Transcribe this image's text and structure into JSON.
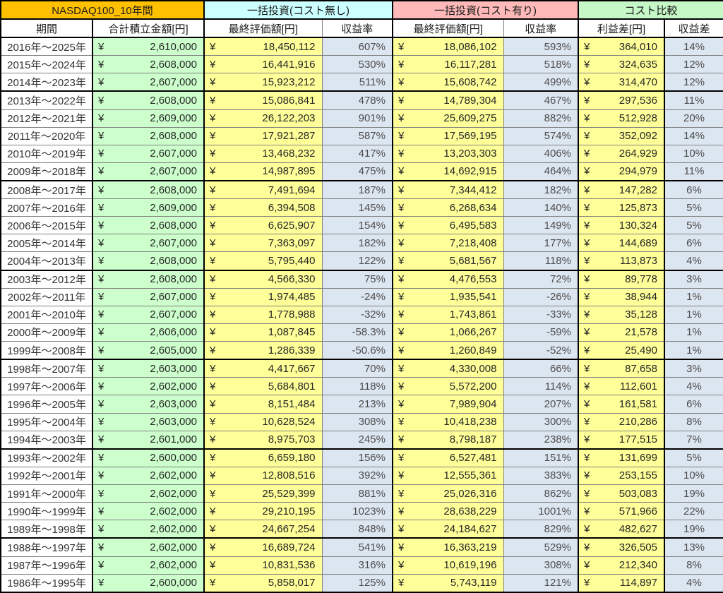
{
  "chart_data": {
    "type": "table",
    "title": "NASDAQ100_10年間",
    "currency_symbol": "¥",
    "group_headers": [
      {
        "label": "NASDAQ100_10年間",
        "color": "#FFC000",
        "span": 2
      },
      {
        "label": "一括投資(コスト無し)",
        "color": "#CCFFFF",
        "span": 2
      },
      {
        "label": "一括投資(コスト有り)",
        "color": "#FFB9B9",
        "span": 2
      },
      {
        "label": "コスト比較",
        "color": "#C6F7C6",
        "span": 2
      }
    ],
    "columns": [
      "期間",
      "合計積立金額[円]",
      "最終評価額[円]",
      "収益率",
      "最終評価額[円]",
      "収益率",
      "利益差[円]",
      "収益差"
    ],
    "cell_colors": {
      "period_bg": "#FFFFFF",
      "invested_bg": "#CCFFCC",
      "value_bg": "#FFFF99",
      "return_bg": "#DCE6F1",
      "grid_thin": "#808080",
      "grid_thick": "#000000"
    },
    "rows": [
      [
        "2016年～2025年",
        "2,610,000",
        "18,450,112",
        "607%",
        "18,086,102",
        "593%",
        "364,010",
        "14%"
      ],
      [
        "2015年～2024年",
        "2,608,000",
        "16,441,916",
        "530%",
        "16,117,281",
        "518%",
        "324,635",
        "12%"
      ],
      [
        "2014年～2023年",
        "2,607,000",
        "15,923,212",
        "511%",
        "15,608,742",
        "499%",
        "314,470",
        "12%"
      ],
      [
        "2013年～2022年",
        "2,608,000",
        "15,086,841",
        "478%",
        "14,789,304",
        "467%",
        "297,536",
        "11%"
      ],
      [
        "2012年～2021年",
        "2,609,000",
        "26,122,203",
        "901%",
        "25,609,275",
        "882%",
        "512,928",
        "20%"
      ],
      [
        "2011年～2020年",
        "2,608,000",
        "17,921,287",
        "587%",
        "17,569,195",
        "574%",
        "352,092",
        "14%"
      ],
      [
        "2010年～2019年",
        "2,607,000",
        "13,468,232",
        "417%",
        "13,203,303",
        "406%",
        "264,929",
        "10%"
      ],
      [
        "2009年～2018年",
        "2,607,000",
        "14,987,895",
        "475%",
        "14,692,915",
        "464%",
        "294,979",
        "11%"
      ],
      [
        "2008年～2017年",
        "2,608,000",
        "7,491,694",
        "187%",
        "7,344,412",
        "182%",
        "147,282",
        "6%"
      ],
      [
        "2007年～2016年",
        "2,609,000",
        "6,394,508",
        "145%",
        "6,268,634",
        "140%",
        "125,873",
        "5%"
      ],
      [
        "2006年～2015年",
        "2,608,000",
        "6,625,907",
        "154%",
        "6,495,583",
        "149%",
        "130,324",
        "5%"
      ],
      [
        "2005年～2014年",
        "2,607,000",
        "7,363,097",
        "182%",
        "7,218,408",
        "177%",
        "144,689",
        "6%"
      ],
      [
        "2004年～2013年",
        "2,608,000",
        "5,795,440",
        "122%",
        "5,681,567",
        "118%",
        "113,873",
        "4%"
      ],
      [
        "2003年～2012年",
        "2,608,000",
        "4,566,330",
        "75%",
        "4,476,553",
        "72%",
        "89,778",
        "3%"
      ],
      [
        "2002年～2011年",
        "2,607,000",
        "1,974,485",
        "-24%",
        "1,935,541",
        "-26%",
        "38,944",
        "1%"
      ],
      [
        "2001年～2010年",
        "2,607,000",
        "1,778,988",
        "-32%",
        "1,743,861",
        "-33%",
        "35,128",
        "1%"
      ],
      [
        "2000年～2009年",
        "2,606,000",
        "1,087,845",
        "-58.3%",
        "1,066,267",
        "-59%",
        "21,578",
        "1%"
      ],
      [
        "1999年～2008年",
        "2,605,000",
        "1,286,339",
        "-50.6%",
        "1,260,849",
        "-52%",
        "25,490",
        "1%"
      ],
      [
        "1998年～2007年",
        "2,603,000",
        "4,417,667",
        "70%",
        "4,330,008",
        "66%",
        "87,658",
        "3%"
      ],
      [
        "1997年～2006年",
        "2,602,000",
        "5,684,801",
        "118%",
        "5,572,200",
        "114%",
        "112,601",
        "4%"
      ],
      [
        "1996年～2005年",
        "2,603,000",
        "8,151,484",
        "213%",
        "7,989,904",
        "207%",
        "161,581",
        "6%"
      ],
      [
        "1995年～2004年",
        "2,603,000",
        "10,628,524",
        "308%",
        "10,418,238",
        "300%",
        "210,286",
        "8%"
      ],
      [
        "1994年～2003年",
        "2,601,000",
        "8,975,703",
        "245%",
        "8,798,187",
        "238%",
        "177,515",
        "7%"
      ],
      [
        "1993年～2002年",
        "2,600,000",
        "6,659,180",
        "156%",
        "6,527,481",
        "151%",
        "131,699",
        "5%"
      ],
      [
        "1992年～2001年",
        "2,602,000",
        "12,808,516",
        "392%",
        "12,555,361",
        "383%",
        "253,155",
        "10%"
      ],
      [
        "1991年～2000年",
        "2,602,000",
        "25,529,399",
        "881%",
        "25,026,316",
        "862%",
        "503,083",
        "19%"
      ],
      [
        "1990年～1999年",
        "2,602,000",
        "29,210,195",
        "1023%",
        "28,638,229",
        "1001%",
        "571,966",
        "22%"
      ],
      [
        "1989年～1998年",
        "2,602,000",
        "24,667,254",
        "848%",
        "24,184,627",
        "829%",
        "482,627",
        "19%"
      ],
      [
        "1988年～1997年",
        "2,602,000",
        "16,689,724",
        "541%",
        "16,363,219",
        "529%",
        "326,505",
        "13%"
      ],
      [
        "1987年～1996年",
        "2,602,000",
        "10,831,536",
        "316%",
        "10,619,196",
        "308%",
        "212,340",
        "8%"
      ],
      [
        "1986年～1995年",
        "2,600,000",
        "5,858,017",
        "125%",
        "5,743,119",
        "121%",
        "114,897",
        "4%"
      ]
    ],
    "thick_border_after_row_indices": [
      2,
      7,
      12,
      17,
      22,
      27
    ]
  }
}
